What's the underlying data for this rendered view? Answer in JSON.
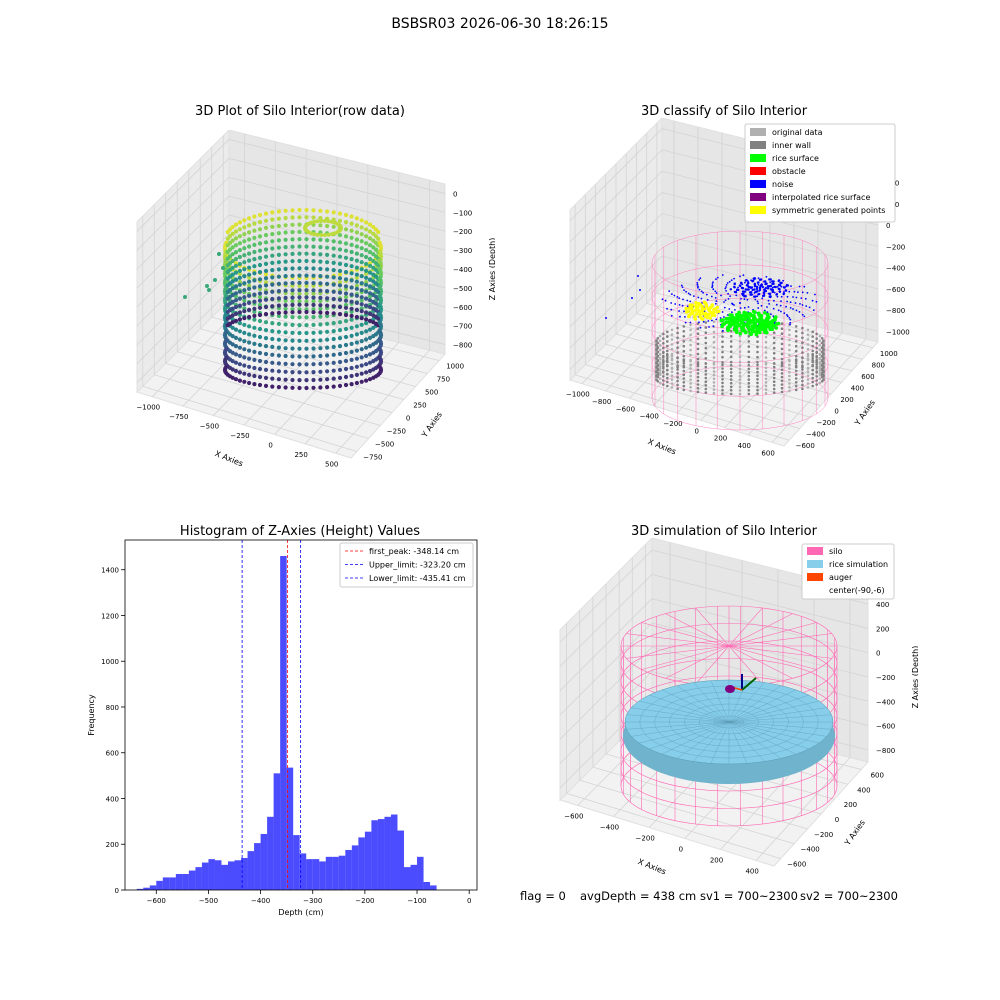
{
  "figure": {
    "suptitle": "BSBSR03 2026-06-30 18:26:15",
    "status": {
      "flag": "flag = 0",
      "avg": "avgDepth = 438 cm",
      "sv1": "sv1 = 700~2300",
      "sv2": "sv2 = 700~2300"
    }
  },
  "colors": {
    "grey_light": "#b0b0b0",
    "grey": "#808080",
    "green": "#00ff00",
    "red": "#ff0000",
    "blue": "#0000ff",
    "purple": "#800080",
    "yellow": "#ffff00",
    "pink": "#ff69b4",
    "skyblue": "#87ceeb",
    "orange": "#ff4500",
    "hist": "#0000ff"
  },
  "chart_data": [
    {
      "type": "scatter",
      "title": "3D Plot of Silo Interior(row data)",
      "xlabel": "X Axies",
      "ylabel": "Y Axies",
      "zlabel": "Z Axies (Depth)",
      "xticks": [
        "−1000",
        "−750",
        "−500",
        "−250",
        "0",
        "250",
        "500"
      ],
      "yticks": [
        "−750",
        "−500",
        "−250",
        "0",
        "250",
        "500",
        "750",
        "1000"
      ],
      "zticks": [
        "−800",
        "−700",
        "−600",
        "−500",
        "−400",
        "−300",
        "−200",
        "−100",
        "0"
      ],
      "colormap": "viridis"
    },
    {
      "type": "scatter",
      "title": "3D classify of Silo Interior",
      "xlabel": "X Axies",
      "ylabel": "Y Axies",
      "zlabel": "Z Axies (Depth)",
      "xticks": [
        "−1000",
        "−800",
        "−600",
        "−400",
        "−200",
        "0",
        "200",
        "400",
        "600"
      ],
      "yticks": [
        "−600",
        "−400",
        "−200",
        "0",
        "200",
        "400",
        "600",
        "800",
        "1000"
      ],
      "zticks": [
        "−1000",
        "−800",
        "−600",
        "−400",
        "−200",
        "0",
        "200",
        "400"
      ],
      "legend": [
        {
          "label": "original data",
          "color": "#b0b0b0"
        },
        {
          "label": "inner wall",
          "color": "#808080"
        },
        {
          "label": "rice surface",
          "color": "#00ff00"
        },
        {
          "label": "obstacle",
          "color": "#ff0000"
        },
        {
          "label": "noise",
          "color": "#0000ff"
        },
        {
          "label": "interpolated rice surface",
          "color": "#800080"
        },
        {
          "label": "symmetric generated points",
          "color": "#ffff00"
        }
      ],
      "legend_loc": "upper right"
    },
    {
      "type": "bar",
      "title": "Histogram of Z-Axies (Height) Values",
      "xlabel": "Depth (cm)",
      "ylabel": "Frequency",
      "xlim": [
        -660,
        15
      ],
      "ylim": [
        0,
        1530
      ],
      "xticks": [
        -600,
        -500,
        -400,
        -300,
        -200,
        -100,
        0
      ],
      "yticks": [
        0,
        200,
        400,
        600,
        800,
        1000,
        1200,
        1400
      ],
      "bin_width": 12.5,
      "bin_start": -637.5,
      "values": [
        5,
        10,
        20,
        40,
        55,
        55,
        70,
        70,
        85,
        100,
        120,
        135,
        130,
        110,
        125,
        130,
        140,
        170,
        205,
        245,
        320,
        510,
        1460,
        535,
        240,
        160,
        135,
        135,
        125,
        145,
        145,
        150,
        175,
        195,
        230,
        255,
        305,
        310,
        320,
        330,
        260,
        100,
        110,
        145,
        35,
        20
      ],
      "lines": [
        {
          "x": -348.14,
          "label": "first_peak: -348.14 cm",
          "color": "red"
        },
        {
          "x": -323.2,
          "label": "Upper_limit: -323.20 cm",
          "color": "blue"
        },
        {
          "x": -435.41,
          "label": "Lower_limit: -435.41 cm",
          "color": "blue"
        }
      ],
      "legend_loc": "upper right"
    },
    {
      "type": "surface",
      "title": "3D simulation of Silo Interior",
      "xlabel": "X Axies",
      "ylabel": "Y Axies",
      "zlabel": "Z Axies (Depth)",
      "xticks": [
        "−600",
        "−400",
        "−200",
        "0",
        "200",
        "400"
      ],
      "yticks": [
        "−600",
        "−400",
        "−200",
        "0",
        "200",
        "400",
        "600"
      ],
      "zticks": [
        "−800",
        "−600",
        "−400",
        "−200",
        "0",
        "200",
        "400"
      ],
      "legend": [
        {
          "label": "silo",
          "color": "#ff69b4"
        },
        {
          "label": "rice simulation",
          "color": "#87ceeb"
        },
        {
          "label": "auger",
          "color": "#ff4500"
        },
        {
          "label": "center(-90,-6)",
          "color": ""
        }
      ],
      "legend_loc": "upper right"
    }
  ]
}
